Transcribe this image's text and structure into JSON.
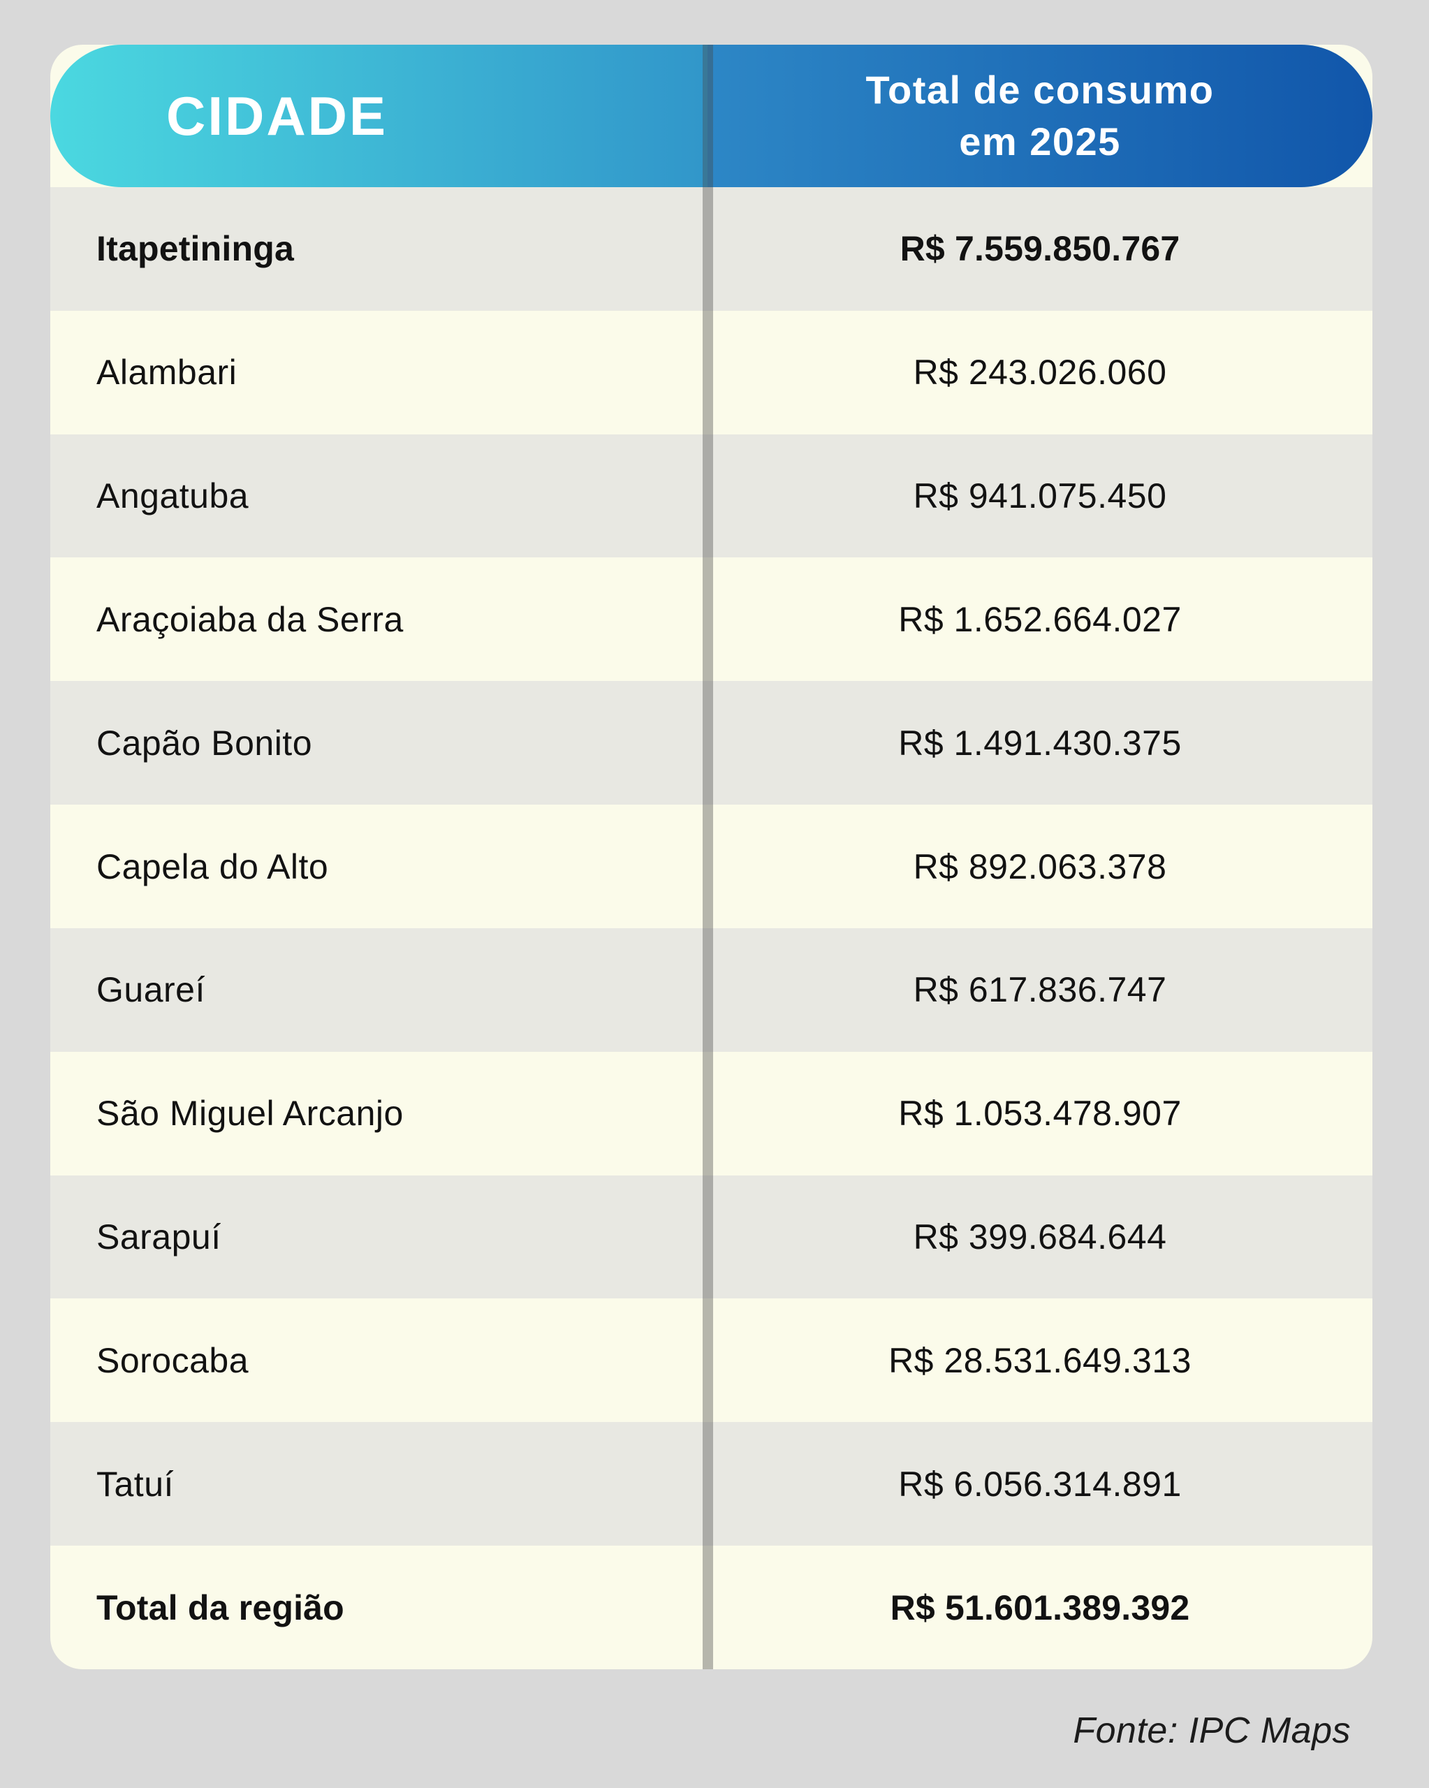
{
  "header": {
    "city_label": "CIDADE",
    "total_label_line1": "Total de consumo",
    "total_label_line2": "em 2025"
  },
  "rows": [
    {
      "city": "Itapetininga",
      "value": "R$ 7.559.850.767",
      "bold": true
    },
    {
      "city": "Alambari",
      "value": "R$ 243.026.060",
      "bold": false
    },
    {
      "city": "Angatuba",
      "value": "R$ 941.075.450",
      "bold": false
    },
    {
      "city": "Araçoiaba da Serra",
      "value": "R$ 1.652.664.027",
      "bold": false
    },
    {
      "city": "Capão Bonito",
      "value": "R$ 1.491.430.375",
      "bold": false
    },
    {
      "city": "Capela do Alto",
      "value": "R$ 892.063.378",
      "bold": false
    },
    {
      "city": "Guareí",
      "value": "R$ 617.836.747",
      "bold": false
    },
    {
      "city": "São Miguel Arcanjo",
      "value": "R$ 1.053.478.907",
      "bold": false
    },
    {
      "city": "Sarapuí",
      "value": "R$ 399.684.644",
      "bold": false
    },
    {
      "city": "Sorocaba",
      "value": "R$ 28.531.649.313",
      "bold": false
    },
    {
      "city": "Tatuí",
      "value": "R$ 6.056.314.891",
      "bold": false
    },
    {
      "city": "Total da região",
      "value": "R$ 51.601.389.392",
      "bold": true
    }
  ],
  "footer": {
    "source": "Fonte: IPC Maps"
  },
  "colors": {
    "page_bg": "#d9d9d9",
    "card_bg": "#fbfbea",
    "row_alt": "#e8e8e2",
    "header_gradient_left_start": "#4bd8e0",
    "header_gradient_left_end": "#3196ca",
    "header_gradient_right_start": "#2d87c6",
    "header_gradient_right_end": "#1156aa",
    "header_text": "#ffffff",
    "body_text": "#121212"
  },
  "chart_data": {
    "type": "table",
    "columns": [
      "CIDADE",
      "Total de consumo em 2025"
    ],
    "rows": [
      [
        "Itapetininga",
        "R$ 7.559.850.767"
      ],
      [
        "Alambari",
        "R$ 243.026.060"
      ],
      [
        "Angatuba",
        "R$ 941.075.450"
      ],
      [
        "Araçoiaba da Serra",
        "R$ 1.652.664.027"
      ],
      [
        "Capão Bonito",
        "R$ 1.491.430.375"
      ],
      [
        "Capela do Alto",
        "R$ 892.063.378"
      ],
      [
        "Guareí",
        "R$ 617.836.747"
      ],
      [
        "São Miguel Arcanjo",
        "R$ 1.053.478.907"
      ],
      [
        "Sarapuí",
        "R$ 399.684.644"
      ],
      [
        "Sorocaba",
        "R$ 28.531.649.313"
      ],
      [
        "Tatuí",
        "R$ 6.056.314.891"
      ],
      [
        "Total da região",
        "R$ 51.601.389.392"
      ]
    ],
    "values_numeric": [
      7559850767,
      243026060,
      941075450,
      1652664027,
      1491430375,
      892063378,
      617836747,
      1053478907,
      399684644,
      28531649313,
      6056314891
    ],
    "total_numeric": 51601389392,
    "source": "Fonte: IPC Maps"
  }
}
